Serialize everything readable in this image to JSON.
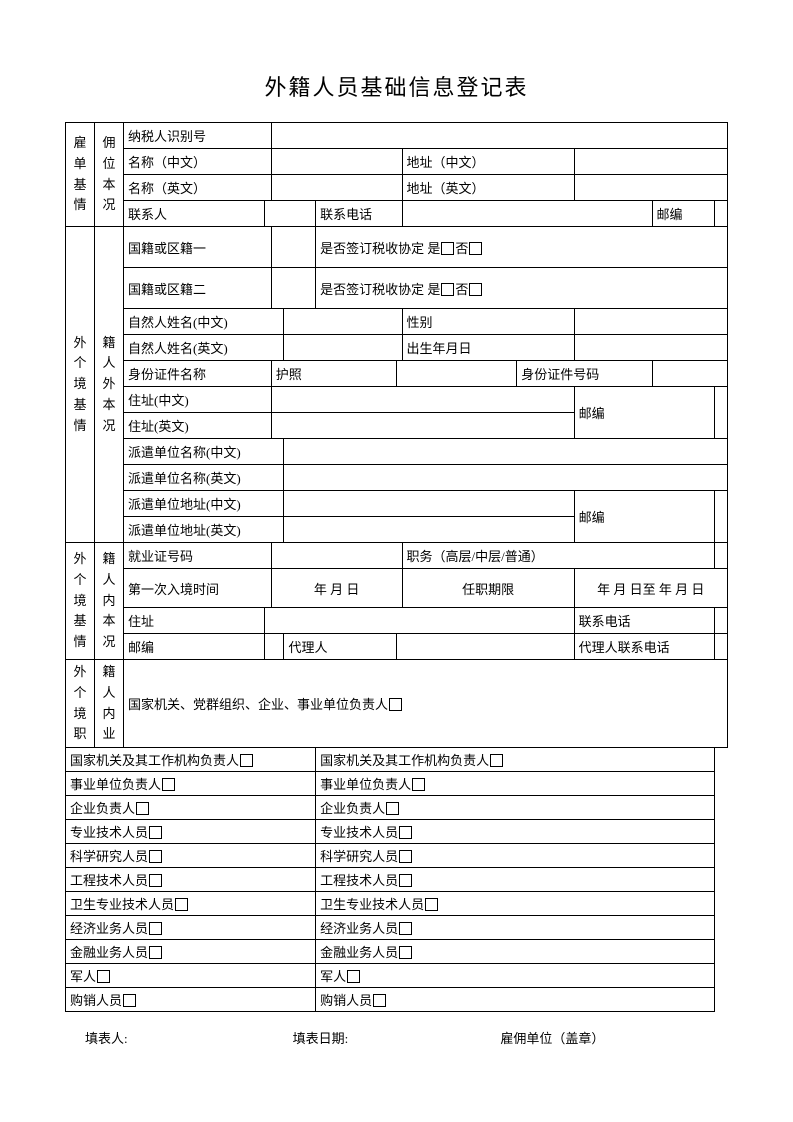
{
  "title": "外籍人员基础信息登记表",
  "section1": {
    "vlabel_col1": "雇单基情",
    "vlabel_col2": "佣位本况",
    "taxpayer_id_label": "纳税人识别号",
    "name_cn_label": "名称（中文）",
    "address_cn_label": "地址（中文）",
    "name_en_label": "名称（英文）",
    "address_en_label": "地址（英文）",
    "contact_label": "联系人",
    "phone_label": "联系电话",
    "postcode_label": "邮编"
  },
  "section2": {
    "vlabel_col1": "外个境基情",
    "vlabel_col2": "籍人外本况",
    "nationality1_label": "国籍或区籍一",
    "tax_agreement1": "是否签订税收协定 是",
    "tax_agreement_no": "否",
    "nationality2_label": "国籍或区籍二",
    "tax_agreement2": "是否签订税收协定 是",
    "natural_name_cn_label": "自然人姓名(中文)",
    "sex_label": "性别",
    "natural_name_en_label": "自然人姓名(英文)",
    "dob_label": "出生年月日",
    "id_doc_name_label": "身份证件名称",
    "passport": "护照",
    "id_doc_no_label": "身份证件号码",
    "addr_cn_label": "住址(中文)",
    "postcode_label": "邮编",
    "addr_en_label": "住址(英文)",
    "dispatch_name_cn": "派遣单位名称(中文)",
    "dispatch_name_en": "派遣单位名称(英文)",
    "dispatch_addr_cn": "派遣单位地址(中文)",
    "dispatch_addr_en": "派遣单位地址(英文)",
    "postcode_label2": "邮编"
  },
  "section3": {
    "vlabel_col1": "外个境基情",
    "vlabel_col2": "籍人内本况",
    "employ_cert_label": "就业证号码",
    "position_label": "职务（高层/中层/普通）",
    "first_entry_label": "第一次入境时间",
    "date_ymd": "年  月  日",
    "term_label": "任职期限",
    "term_value": "年  月  日至     年  月  日",
    "addr_label": "住址",
    "phone_label": "联系电话",
    "postcode_label": "邮编",
    "agent_label": "代理人",
    "agent_phone_label": "代理人联系电话"
  },
  "section4": {
    "vlabel_col1": "外个境职",
    "vlabel_col2": "籍人内业",
    "row0": "国家机关、党群组织、企业、事业单位负责人",
    "rows_left": [
      "国家机关及其工作机构负责人",
      "事业单位负责人",
      "企业负责人",
      "专业技术人员",
      "科学研究人员",
      "工程技术人员",
      "卫生专业技术人员",
      "经济业务人员",
      "金融业务人员",
      "军人",
      "购销人员"
    ],
    "rows_right": [
      "国家机关及其工作机构负责人",
      "事业单位负责人",
      "企业负责人",
      "专业技术人员",
      "科学研究人员",
      "工程技术人员",
      "卫生专业技术人员",
      "经济业务人员",
      "金融业务人员",
      "军人",
      "购销人员"
    ]
  },
  "footer": {
    "filler": "填表人:",
    "date": "填表日期:",
    "employer": "雇佣单位（盖章）"
  }
}
